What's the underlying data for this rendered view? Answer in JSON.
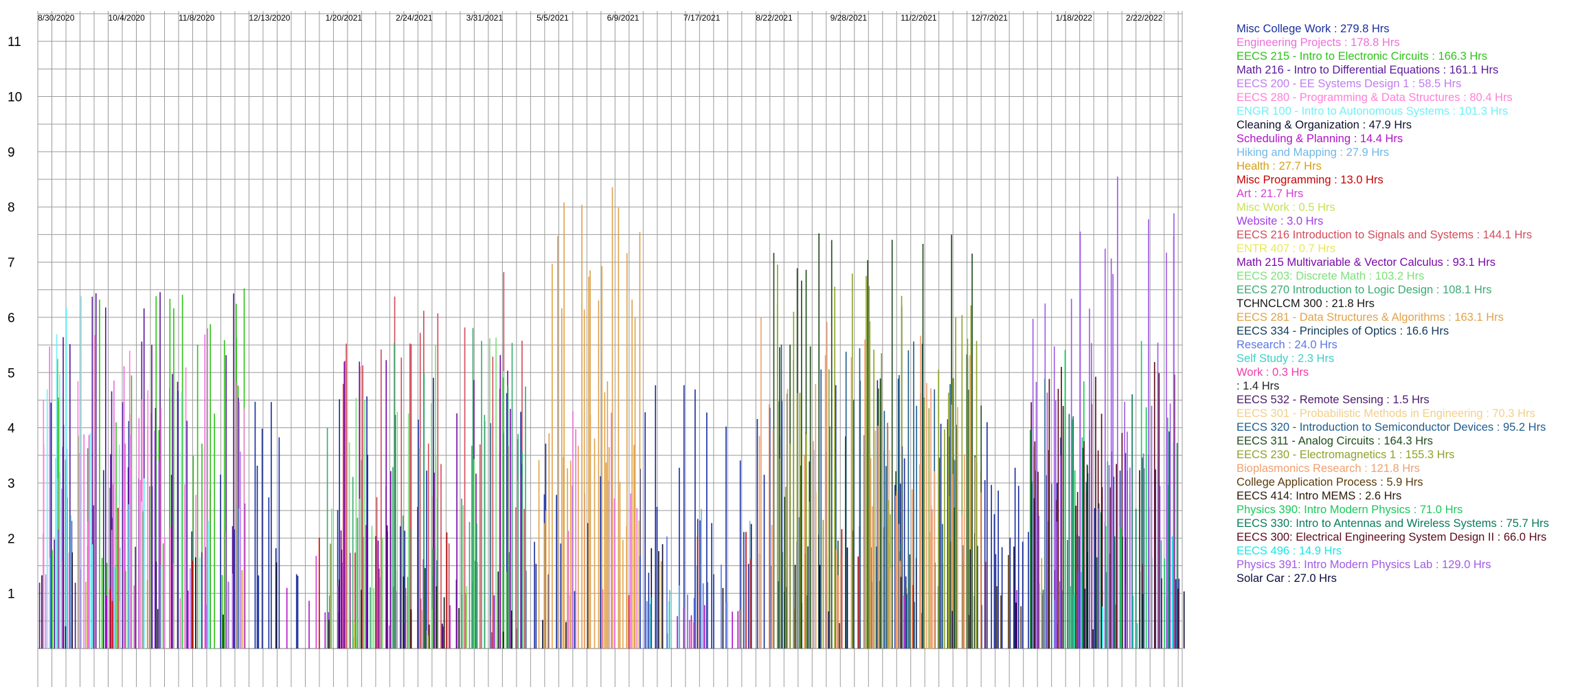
{
  "chart_data": {
    "type": "bar",
    "title": "",
    "xlabel": "",
    "ylabel": "",
    "ylim": [
      0,
      11.5
    ],
    "xlim": [
      "2020-08-30",
      "2022-03-22"
    ],
    "grid": true,
    "legend_position": "right",
    "x_ticks": [
      "8/30/2020",
      "10/4/2020",
      "11/8/2020",
      "12/13/2020",
      "1/20/2021",
      "2/24/2021",
      "3/31/2021",
      "5/5/2021",
      "6/9/2021",
      "7/17/2021",
      "8/22/2021",
      "9/28/2021",
      "11/2/2021",
      "12/7/2021",
      "1/18/2022",
      "2/22/2022"
    ],
    "y_ticks": [
      1,
      2,
      3,
      4,
      5,
      6,
      7,
      8,
      9,
      10,
      11
    ],
    "series": [
      {
        "name": "Misc College Work",
        "total_hours": 279.8,
        "color": "#1a2f9e",
        "periods": [
          [
            "2020-08-30",
            "2022-03-22",
            2.6,
            0.28
          ]
        ]
      },
      {
        "name": "Engineering Projects",
        "total_hours": 178.8,
        "color": "#ee6fd9",
        "periods": [
          [
            "2020-08-30",
            "2020-11-30",
            3.2,
            0.22
          ],
          [
            "2021-05-15",
            "2021-07-05",
            2.4,
            0.16
          ]
        ]
      },
      {
        "name": "EECS 215 - Intro to Electronic Circuits",
        "total_hours": 166.3,
        "color": "#2fc21a",
        "periods": [
          [
            "2020-08-30",
            "2020-12-12",
            3.6,
            0.35
          ]
        ]
      },
      {
        "name": "Math 216 - Intro to Differential Equations",
        "total_hours": 161.1,
        "color": "#5a189a",
        "periods": [
          [
            "2020-08-30",
            "2020-12-12",
            3.4,
            0.32
          ]
        ]
      },
      {
        "name": "EECS 200 - EE Systems Design 1",
        "total_hours": 58.5,
        "color": "#c07cf0",
        "periods": [
          [
            "2020-08-30",
            "2020-12-12",
            2.6,
            0.14
          ]
        ]
      },
      {
        "name": "EECS 280 - Programming & Data Structures",
        "total_hours": 80.4,
        "color": "#ff7fd8",
        "periods": [
          [
            "2020-08-30",
            "2020-12-12",
            3.0,
            0.18
          ]
        ]
      },
      {
        "name": "ENGR 100 - Intro to Autonomous Systems",
        "total_hours": 101.3,
        "color": "#6ff0f7",
        "periods": [
          [
            "2020-08-30",
            "2020-12-12",
            3.4,
            0.22
          ]
        ]
      },
      {
        "name": "Cleaning & Organization",
        "total_hours": 47.9,
        "color": "#0f0f2e",
        "periods": [
          [
            "2020-08-30",
            "2022-03-22",
            1.2,
            0.06
          ]
        ]
      },
      {
        "name": "Scheduling & Planning",
        "total_hours": 14.4,
        "color": "#b012c8",
        "periods": [
          [
            "2020-08-30",
            "2022-03-22",
            0.6,
            0.04
          ]
        ]
      },
      {
        "name": "Hiking and Mapping",
        "total_hours": 27.9,
        "color": "#6fb8e8",
        "periods": [
          [
            "2021-05-01",
            "2021-09-01",
            1.8,
            0.05
          ]
        ]
      },
      {
        "name": "Health",
        "total_hours": 27.7,
        "color": "#d4a017",
        "periods": [
          [
            "2020-08-30",
            "2022-03-22",
            0.9,
            0.04
          ]
        ]
      },
      {
        "name": "Misc Programming",
        "total_hours": 13.0,
        "color": "#c80000",
        "periods": [
          [
            "2020-08-30",
            "2022-03-22",
            1.5,
            0.02
          ]
        ]
      },
      {
        "name": "Art",
        "total_hours": 21.7,
        "color": "#d83cd8",
        "periods": [
          [
            "2020-12-13",
            "2021-03-15",
            1.0,
            0.05
          ]
        ]
      },
      {
        "name": "Misc Work",
        "total_hours": 0.5,
        "color": "#c8e05a",
        "periods": [
          [
            "2021-02-01",
            "2021-02-05",
            0.5,
            1.0
          ]
        ]
      },
      {
        "name": "Website",
        "total_hours": 3.0,
        "color": "#a23ce6",
        "periods": [
          [
            "2021-01-10",
            "2021-01-30",
            1.0,
            0.15
          ]
        ]
      },
      {
        "name": "EECS 216 Introduction to Signals and Systems",
        "total_hours": 144.1,
        "color": "#d24b5a",
        "periods": [
          [
            "2021-01-20",
            "2021-04-30",
            3.6,
            0.3
          ]
        ]
      },
      {
        "name": "ENTR 407",
        "total_hours": 0.7,
        "color": "#e8e85a",
        "periods": [
          [
            "2021-03-10",
            "2021-03-14",
            0.7,
            1.0
          ]
        ]
      },
      {
        "name": "Math 215 Multivariable & Vector Calculus",
        "total_hours": 93.1,
        "color": "#7a0aa8",
        "periods": [
          [
            "2021-01-20",
            "2021-04-30",
            2.8,
            0.22
          ]
        ]
      },
      {
        "name": "EECS 203: Discrete Math",
        "total_hours": 103.2,
        "color": "#7de07a",
        "periods": [
          [
            "2021-01-20",
            "2021-04-30",
            3.0,
            0.25
          ]
        ]
      },
      {
        "name": "EECS 270 Introduction to Logic Design",
        "total_hours": 108.1,
        "color": "#3aaa72",
        "periods": [
          [
            "2021-01-20",
            "2021-04-30",
            3.2,
            0.25
          ]
        ]
      },
      {
        "name": "TCHNCLCM 300",
        "total_hours": 21.8,
        "color": "#161616",
        "periods": [
          [
            "2021-01-20",
            "2021-04-30",
            1.0,
            0.1
          ]
        ]
      },
      {
        "name": "EECS 281 - Data Structures & Algorithms",
        "total_hours": 163.1,
        "color": "#e0a24a",
        "periods": [
          [
            "2021-05-05",
            "2021-06-25",
            4.5,
            0.6
          ]
        ]
      },
      {
        "name": "EECS 334 - Principles of Optics",
        "total_hours": 16.6,
        "color": "#123a5a",
        "periods": [
          [
            "2021-08-30",
            "2021-12-10",
            1.0,
            0.08
          ]
        ]
      },
      {
        "name": "Research",
        "total_hours": 24.0,
        "color": "#5a78e6",
        "periods": [
          [
            "2021-06-01",
            "2021-08-30",
            1.2,
            0.08
          ]
        ]
      },
      {
        "name": "Self Study",
        "total_hours": 2.3,
        "color": "#3ad0c8",
        "periods": [
          [
            "2021-07-01",
            "2021-07-10",
            1.0,
            0.3
          ]
        ]
      },
      {
        "name": "Work",
        "total_hours": 0.3,
        "color": "#f03ca8",
        "periods": [
          [
            "2021-07-20",
            "2021-07-22",
            0.3,
            1.0
          ]
        ]
      },
      {
        "name": "",
        "total_hours": 1.4,
        "color": "#222222",
        "periods": []
      },
      {
        "name": "EECS 532 - Remote Sensing",
        "total_hours": 1.5,
        "color": "#4a1a6a",
        "periods": [
          [
            "2022-01-10",
            "2022-01-20",
            0.8,
            0.2
          ]
        ]
      },
      {
        "name": "EECS 301 - Probabilistic Methods in Engineering",
        "total_hours": 70.3,
        "color": "#f2cf8a",
        "periods": [
          [
            "2021-08-30",
            "2021-12-12",
            2.4,
            0.22
          ]
        ]
      },
      {
        "name": "EECS 320 - Introduction to Semiconductor Devices",
        "total_hours": 95.2,
        "color": "#1d5c8c",
        "periods": [
          [
            "2021-08-30",
            "2021-12-12",
            3.0,
            0.25
          ]
        ]
      },
      {
        "name": "EECS 311 - Analog Circuits",
        "total_hours": 164.3,
        "color": "#1f4d1a",
        "periods": [
          [
            "2021-08-30",
            "2021-12-12",
            4.0,
            0.35
          ]
        ]
      },
      {
        "name": "EECS 230 - Electromagnetics 1",
        "total_hours": 155.3,
        "color": "#8ca32a",
        "periods": [
          [
            "2021-08-30",
            "2021-12-12",
            3.8,
            0.35
          ]
        ]
      },
      {
        "name": "Bioplasmonics Research",
        "total_hours": 121.8,
        "color": "#f0a070",
        "periods": [
          [
            "2021-08-22",
            "2021-12-12",
            3.2,
            0.3
          ]
        ]
      },
      {
        "name": "College Application Process",
        "total_hours": 5.9,
        "color": "#5a3a0a",
        "periods": [
          [
            "2021-12-15",
            "2022-01-05",
            1.5,
            0.2
          ]
        ]
      },
      {
        "name": "EECS 414: Intro MEMS",
        "total_hours": 2.6,
        "color": "#2a1a0a",
        "periods": [
          [
            "2022-01-10",
            "2022-01-20",
            0.9,
            0.2
          ]
        ]
      },
      {
        "name": "Physics 390: Intro Modern Physics",
        "total_hours": 71.0,
        "color": "#1ac85a",
        "periods": [
          [
            "2022-01-05",
            "2022-03-22",
            3.0,
            0.3
          ]
        ]
      },
      {
        "name": "EECS 330: Intro to Antennas and Wireless Systems",
        "total_hours": 75.7,
        "color": "#0a7a5a",
        "periods": [
          [
            "2022-01-05",
            "2022-03-22",
            3.2,
            0.3
          ]
        ]
      },
      {
        "name": "EECS 300: Electrical Engineering System Design II",
        "total_hours": 66.0,
        "color": "#5a0a1a",
        "periods": [
          [
            "2022-01-05",
            "2022-03-22",
            2.8,
            0.3
          ]
        ]
      },
      {
        "name": "EECS 496",
        "total_hours": 14.9,
        "color": "#1ae6e6",
        "periods": [
          [
            "2022-01-05",
            "2022-03-22",
            1.4,
            0.15
          ]
        ]
      },
      {
        "name": "Physics 391: Intro Modern Physics Lab",
        "total_hours": 129.0,
        "color": "#a05ae6",
        "periods": [
          [
            "2022-01-05",
            "2022-03-22",
            4.5,
            0.4
          ]
        ]
      },
      {
        "name": "Solar Car",
        "total_hours": 27.0,
        "color": "#0a0a3a",
        "periods": [
          [
            "2021-09-01",
            "2022-03-22",
            1.0,
            0.08
          ]
        ]
      }
    ]
  }
}
